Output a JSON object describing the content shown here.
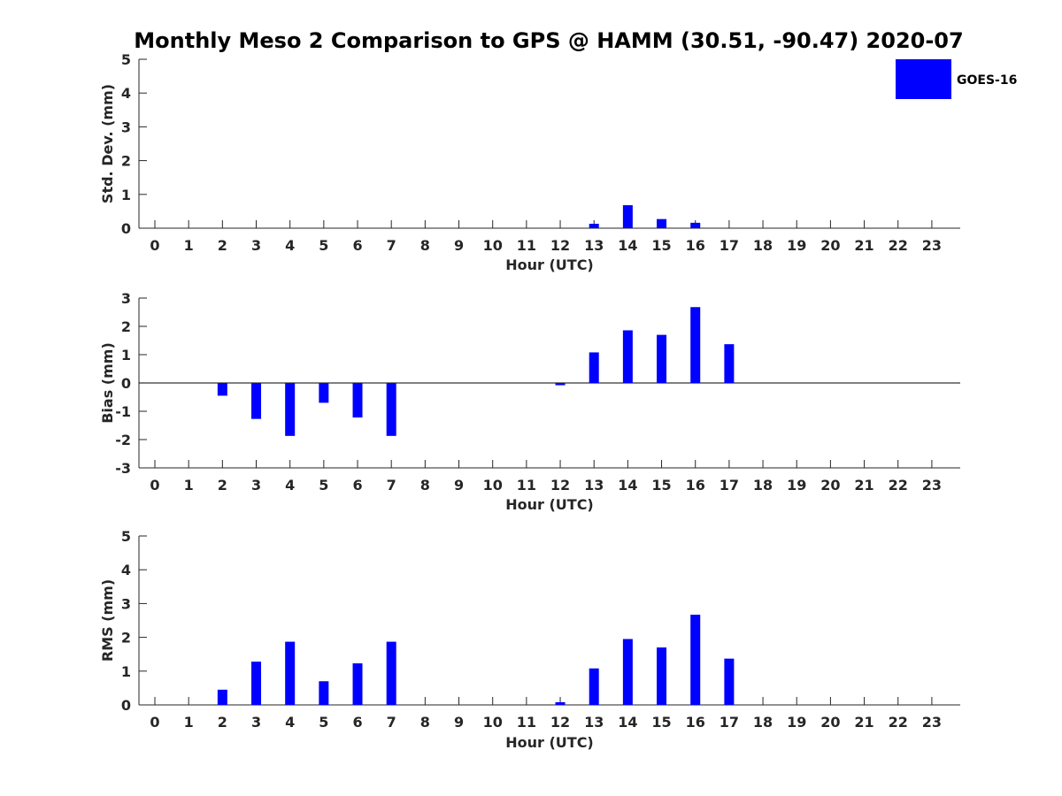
{
  "figure": {
    "title": "Monthly Meso 2 Comparison to GPS @ HAMM (30.51, -90.47) 2020-07"
  },
  "legend": {
    "label": "GOES-16",
    "color": "#0000ff",
    "placement": "top-right"
  },
  "chart_data": [
    {
      "type": "bar",
      "xlabel": "Hour (UTC)",
      "ylabel": "Std. Dev. (mm)",
      "ylim": [
        0,
        5
      ],
      "yticks": [
        0,
        1,
        2,
        3,
        4,
        5
      ],
      "categories": [
        "0",
        "1",
        "2",
        "3",
        "4",
        "5",
        "6",
        "7",
        "8",
        "9",
        "10",
        "11",
        "12",
        "13",
        "14",
        "15",
        "16",
        "17",
        "18",
        "19",
        "20",
        "21",
        "22",
        "23"
      ],
      "series": [
        {
          "name": "GOES-16",
          "color": "#0000ff",
          "values": [
            null,
            null,
            0,
            0,
            0,
            0,
            0,
            0,
            null,
            null,
            null,
            null,
            0,
            0.13,
            0.68,
            0.27,
            0.16,
            0,
            null,
            null,
            null,
            null,
            null,
            null
          ]
        }
      ],
      "zero_line": false
    },
    {
      "type": "bar",
      "xlabel": "Hour (UTC)",
      "ylabel": "Bias (mm)",
      "ylim": [
        -3,
        3
      ],
      "yticks": [
        -3,
        -2,
        -1,
        0,
        1,
        2,
        3
      ],
      "categories": [
        "0",
        "1",
        "2",
        "3",
        "4",
        "5",
        "6",
        "7",
        "8",
        "9",
        "10",
        "11",
        "12",
        "13",
        "14",
        "15",
        "16",
        "17",
        "18",
        "19",
        "20",
        "21",
        "22",
        "23"
      ],
      "series": [
        {
          "name": "GOES-16",
          "color": "#0000ff",
          "values": [
            null,
            null,
            -0.45,
            -1.27,
            -1.87,
            -0.7,
            -1.22,
            -1.87,
            null,
            null,
            null,
            null,
            -0.08,
            1.08,
            1.86,
            1.7,
            2.68,
            1.37,
            null,
            null,
            null,
            null,
            null,
            null
          ]
        }
      ],
      "zero_line": true
    },
    {
      "type": "bar",
      "xlabel": "Hour (UTC)",
      "ylabel": "RMS (mm)",
      "ylim": [
        0,
        5
      ],
      "yticks": [
        0,
        1,
        2,
        3,
        4,
        5
      ],
      "categories": [
        "0",
        "1",
        "2",
        "3",
        "4",
        "5",
        "6",
        "7",
        "8",
        "9",
        "10",
        "11",
        "12",
        "13",
        "14",
        "15",
        "16",
        "17",
        "18",
        "19",
        "20",
        "21",
        "22",
        "23"
      ],
      "series": [
        {
          "name": "GOES-16",
          "color": "#0000ff",
          "values": [
            null,
            null,
            0.45,
            1.28,
            1.87,
            0.7,
            1.23,
            1.87,
            null,
            null,
            null,
            null,
            0.08,
            1.08,
            1.95,
            1.7,
            2.67,
            1.37,
            null,
            null,
            null,
            null,
            null,
            null
          ]
        }
      ],
      "zero_line": false
    }
  ]
}
